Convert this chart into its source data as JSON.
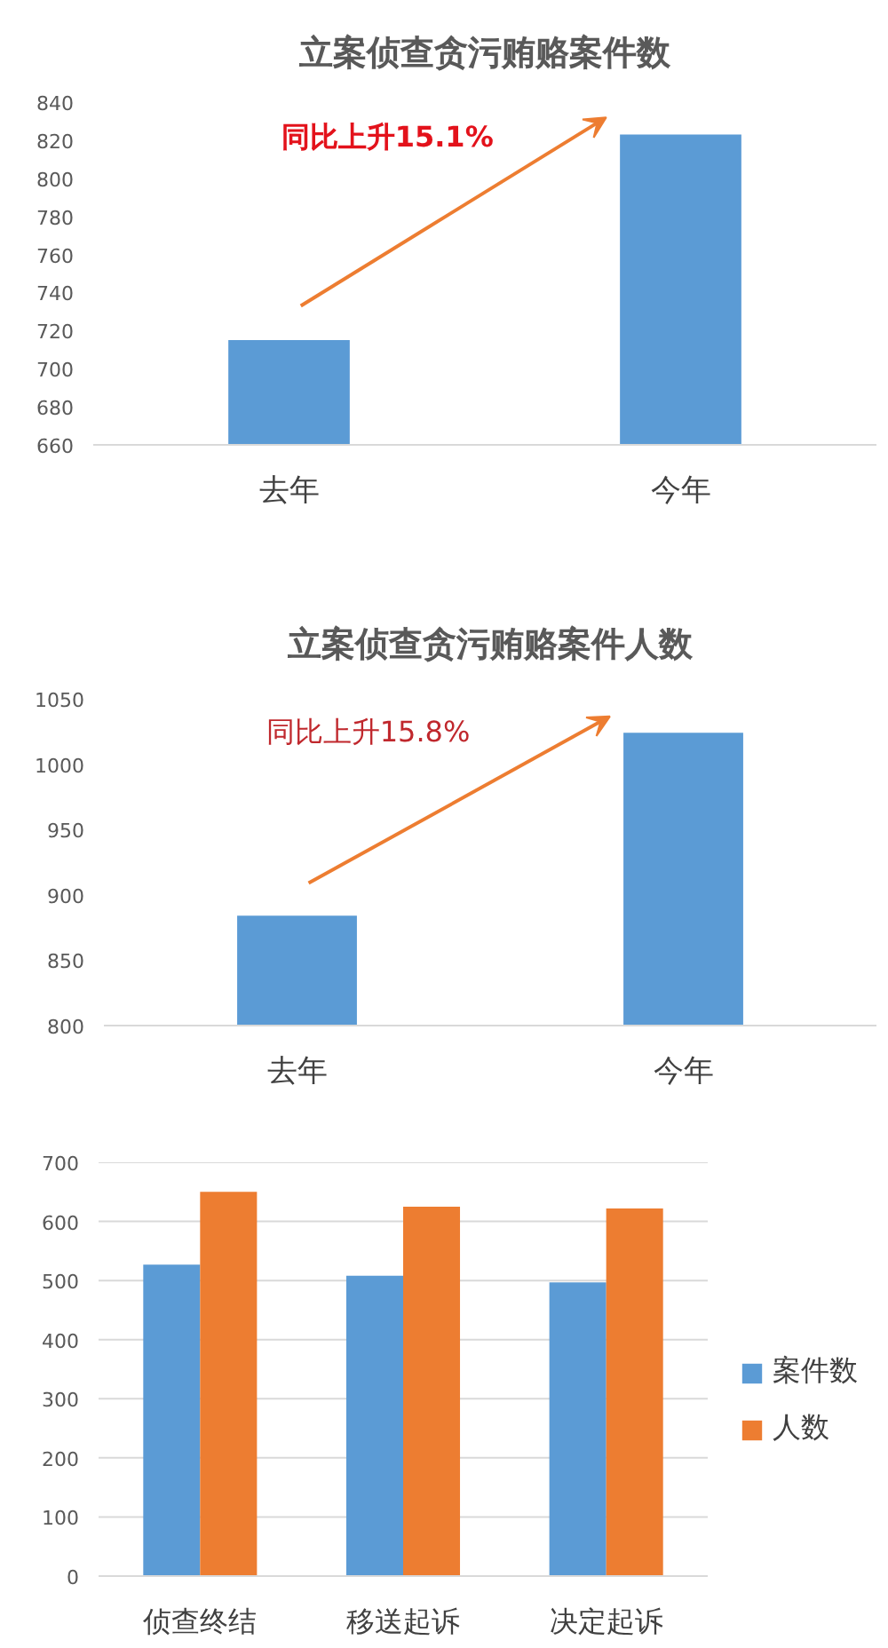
{
  "chart_data": [
    {
      "type": "bar",
      "title": "立案侦查贪污贿赂案件数",
      "categories": [
        "去年",
        "今年"
      ],
      "values": [
        715,
        823
      ],
      "color": "#5b9bd5",
      "ylim": [
        660,
        840
      ],
      "yticks": [
        660,
        680,
        700,
        720,
        740,
        760,
        780,
        800,
        820,
        840
      ],
      "annotations": [
        "同比上升15.1%"
      ]
    },
    {
      "type": "bar",
      "title": "立案侦查贪污贿赂案件人数",
      "categories": [
        "去年",
        "今年"
      ],
      "values": [
        884,
        1024
      ],
      "color": "#5b9bd5",
      "ylim": [
        800,
        1050
      ],
      "yticks": [
        800,
        850,
        900,
        950,
        1000,
        1050
      ],
      "annotations": [
        "同比上升15.8%"
      ]
    },
    {
      "type": "bar",
      "categories": [
        "侦查终结",
        "移送起诉",
        "决定起诉"
      ],
      "series": [
        {
          "name": "案件数",
          "color": "#5b9bd5",
          "values": [
            527,
            508,
            497
          ]
        },
        {
          "name": "人数",
          "color": "#ed7d31",
          "values": [
            650,
            625,
            622
          ]
        }
      ],
      "ylim": [
        0,
        700
      ],
      "yticks": [
        0,
        100,
        200,
        300,
        400,
        500,
        600,
        700
      ],
      "grid": "y",
      "legend": "right"
    }
  ]
}
